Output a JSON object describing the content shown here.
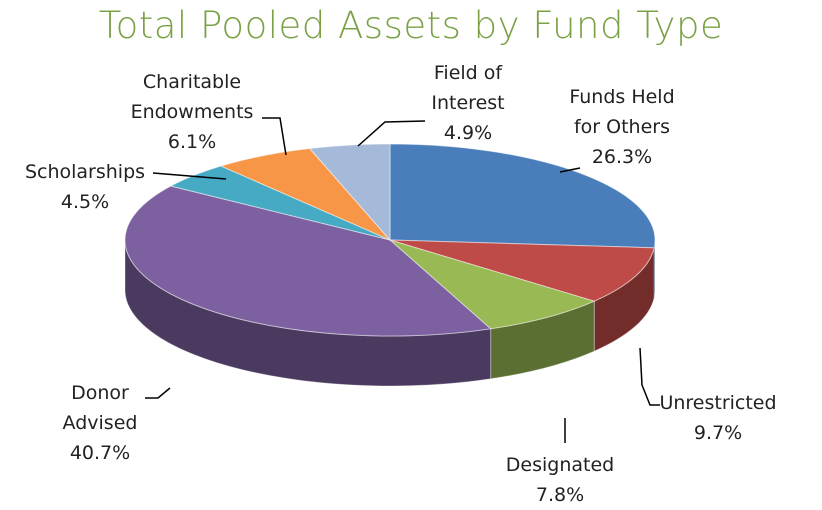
{
  "chart_data": {
    "type": "pie3d",
    "title": "Total Pooled Assets by Fund Type",
    "categories": [
      "Funds Held for Others",
      "Unrestricted",
      "Designated",
      "Donor Advised",
      "Scholarships",
      "Charitable Endowments",
      "Field of Interest"
    ],
    "values": [
      26.3,
      9.7,
      7.8,
      40.7,
      4.5,
      6.1,
      4.9
    ],
    "value_labels": [
      "26.3%",
      "9.7%",
      "7.8%",
      "40.7%",
      "4.5%",
      "6.1%",
      "4.9%"
    ],
    "colors": [
      "#4a7ebb",
      "#be4b48",
      "#98b954",
      "#7d60a0",
      "#46aac5",
      "#f79646",
      "#a5b9d9"
    ]
  }
}
